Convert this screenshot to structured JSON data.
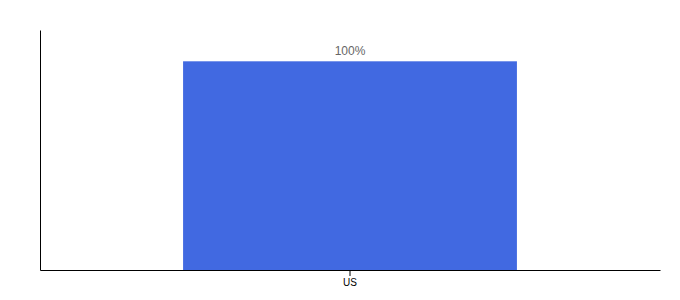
{
  "chart_data": {
    "type": "bar",
    "categories": [
      "US"
    ],
    "values": [
      100
    ],
    "value_labels": [
      "100%"
    ],
    "data_labels": true,
    "color": "#4169e1",
    "ylim": [
      0,
      115
    ],
    "yticks": [],
    "tick_labels": "x"
  }
}
